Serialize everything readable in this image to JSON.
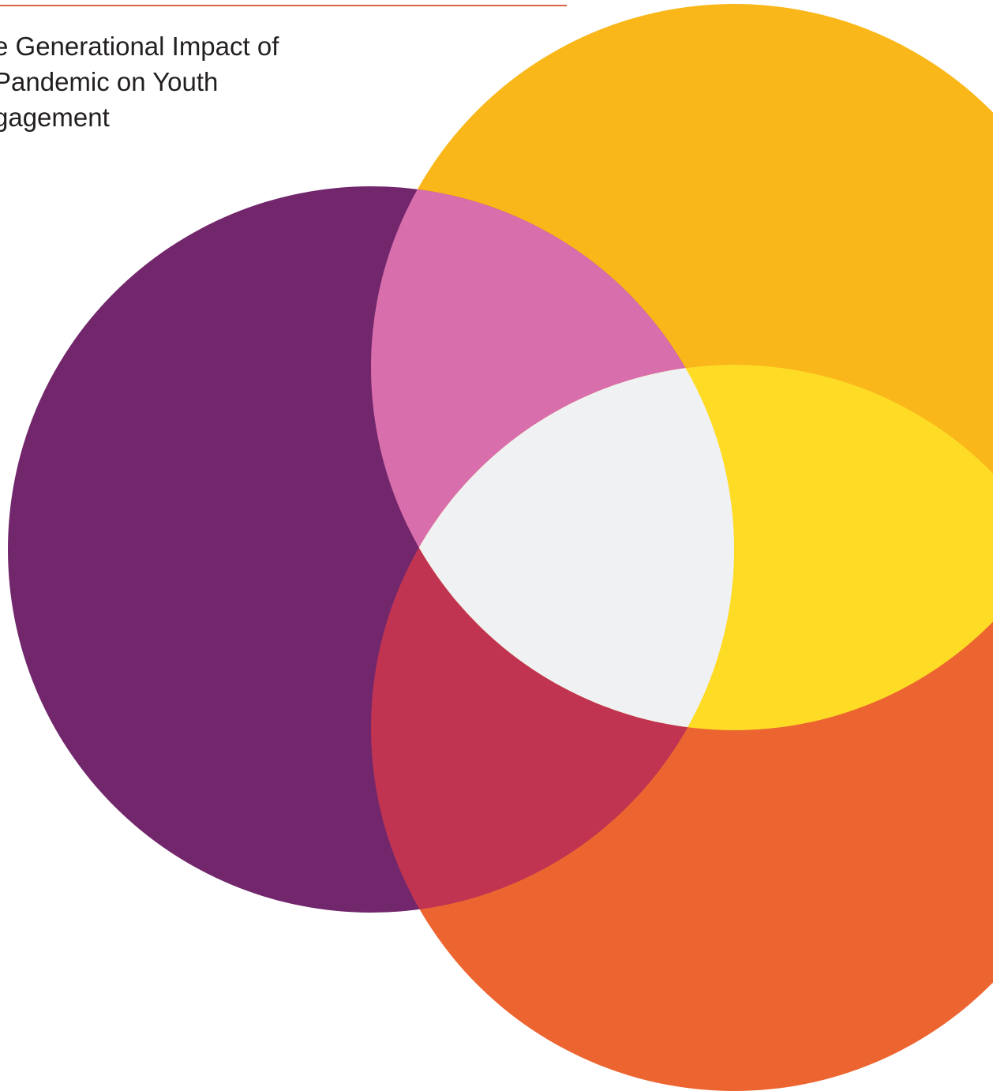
{
  "document": {
    "title_lines": [
      "e Generational Impact of",
      "Pandemic on Youth",
      "gagement"
    ]
  },
  "colors": {
    "rule": "#d9604a",
    "purple": "#72276c",
    "gold": "#fab719",
    "orange": "#ec6531",
    "pink": "#d86eac",
    "crimson": "#c13451",
    "yellow": "#fedc26",
    "center": "#f0f1f3"
  }
}
